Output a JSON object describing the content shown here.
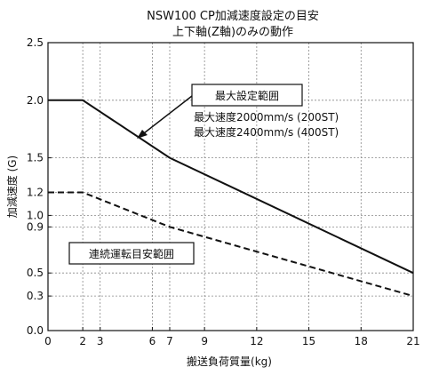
{
  "chart_data": {
    "type": "line",
    "title": "NSW100 CP加減速度設定の目安",
    "subtitle": "上下軸(Z軸)のみの動作",
    "xlabel": "搬送負荷質量(kg)",
    "ylabel": "加減速度 (G)",
    "xlim": [
      0,
      21
    ],
    "ylim": [
      0,
      2.5
    ],
    "x_ticks": [
      0,
      2,
      3,
      6,
      7,
      9,
      12,
      15,
      18,
      21
    ],
    "y_ticks": [
      0.0,
      0.3,
      0.5,
      0.9,
      1.0,
      1.2,
      1.5,
      2.0,
      2.5
    ],
    "x_tick_labels": [
      "0",
      "2",
      "3",
      "6",
      "7",
      "9",
      "12",
      "15",
      "18",
      "21"
    ],
    "y_tick_labels": [
      "0.0",
      "0.3",
      "0.5",
      "0.9",
      "1.0",
      "1.2",
      "1.5",
      "2.0",
      "2.5"
    ],
    "grid": true,
    "series": [
      {
        "style": "solid",
        "x": [
          0,
          2,
          7,
          21
        ],
        "y": [
          2.0,
          2.0,
          1.5,
          0.5
        ]
      },
      {
        "style": "dashed",
        "x": [
          0,
          2,
          7,
          21
        ],
        "y": [
          1.2,
          1.2,
          0.9,
          0.3
        ]
      }
    ],
    "annotations": {
      "max_range_label": "最大設定範囲",
      "max_speed_line1": "最大速度2000mm/s (200ST)",
      "max_speed_line2": "最大速度2400mm/s (400ST)",
      "continuous_label": "連続運転目安範囲"
    }
  }
}
